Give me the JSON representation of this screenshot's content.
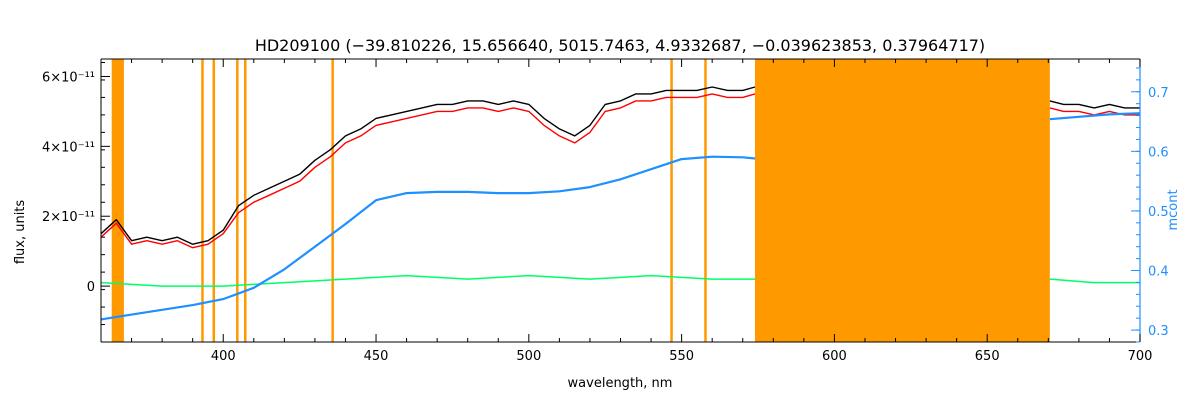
{
  "chart_data": {
    "type": "line",
    "title": "HD209100    (−39.810226, 15.656640, 5015.7463, 4.9332687, −0.039623853, 0.37964717)",
    "xlabel": "wavelength, nm",
    "ylabel": "flux, units",
    "y2label": "mcont",
    "xlim": [
      360,
      700
    ],
    "ylim": [
      -1.6e-11,
      6.5e-11
    ],
    "y2lim": [
      0.28,
      0.755
    ],
    "x_ticks": [
      {
        "value": 400,
        "label": "400"
      },
      {
        "value": 450,
        "label": "450"
      },
      {
        "value": 500,
        "label": "500"
      },
      {
        "value": 550,
        "label": "550"
      },
      {
        "value": 600,
        "label": "600"
      },
      {
        "value": 650,
        "label": "650"
      },
      {
        "value": 700,
        "label": "700"
      }
    ],
    "y_ticks": [
      {
        "value": 0,
        "label": "0"
      },
      {
        "value": 2e-11,
        "label": "2×10⁻¹¹"
      },
      {
        "value": 4e-11,
        "label": "4×10⁻¹¹"
      },
      {
        "value": 6e-11,
        "label": "6×10⁻¹¹"
      }
    ],
    "y2_ticks": [
      {
        "value": 0.3,
        "label": "0.3"
      },
      {
        "value": 0.4,
        "label": "0.4"
      },
      {
        "value": 0.5,
        "label": "0.5"
      },
      {
        "value": 0.6,
        "label": "0.6"
      },
      {
        "value": 0.7,
        "label": "0.7"
      }
    ],
    "masked_regions": [
      {
        "x0": 363.5,
        "x1": 367.5
      },
      {
        "x0": 392.8,
        "x1": 393.6
      },
      {
        "x0": 396.5,
        "x1": 397.3
      },
      {
        "x0": 404.2,
        "x1": 405.0
      },
      {
        "x0": 406.8,
        "x1": 407.6
      },
      {
        "x0": 435.4,
        "x1": 436.2
      },
      {
        "x0": 546.3,
        "x1": 547.1
      },
      {
        "x0": 557.4,
        "x1": 558.2
      },
      {
        "x0": 574.0,
        "x1": 670.5
      }
    ],
    "series": [
      {
        "role": "observed",
        "color": "#000000",
        "segments": [
          {
            "x": [
              360,
              365,
              370,
              375,
              380,
              385,
              390,
              395,
              400,
              405,
              410,
              415,
              420,
              425,
              430,
              435,
              440,
              445,
              450,
              455,
              460,
              465,
              470,
              475,
              480,
              485,
              490,
              495,
              500,
              505,
              510,
              515,
              520,
              525,
              530,
              535,
              540,
              545,
              550,
              555,
              560,
              565,
              570,
              574
            ],
            "y": [
              1.5e-11,
              1.9e-11,
              1.3e-11,
              1.4e-11,
              1.3e-11,
              1.4e-11,
              1.2e-11,
              1.3e-11,
              1.6e-11,
              2.3e-11,
              2.6e-11,
              2.8e-11,
              3e-11,
              3.2e-11,
              3.6e-11,
              3.9e-11,
              4.3e-11,
              4.5e-11,
              4.8e-11,
              4.9e-11,
              5e-11,
              5.1e-11,
              5.2e-11,
              5.2e-11,
              5.3e-11,
              5.3e-11,
              5.2e-11,
              5.3e-11,
              5.2e-11,
              4.8e-11,
              4.5e-11,
              4.3e-11,
              4.6e-11,
              5.2e-11,
              5.3e-11,
              5.5e-11,
              5.5e-11,
              5.6e-11,
              5.6e-11,
              5.6e-11,
              5.7e-11,
              5.6e-11,
              5.6e-11,
              5.7e-11
            ]
          },
          {
            "x": [
              670.5,
              675,
              680,
              685,
              690,
              695,
              700
            ],
            "y": [
              5.3e-11,
              5.2e-11,
              5.2e-11,
              5.1e-11,
              5.2e-11,
              5.1e-11,
              5.1e-11
            ]
          }
        ]
      },
      {
        "role": "model",
        "color": "#ff0000",
        "segments": [
          {
            "x": [
              360,
              365,
              370,
              375,
              380,
              385,
              390,
              395,
              400,
              405,
              410,
              415,
              420,
              425,
              430,
              435,
              440,
              445,
              450,
              455,
              460,
              465,
              470,
              475,
              480,
              485,
              490,
              495,
              500,
              505,
              510,
              515,
              520,
              525,
              530,
              535,
              540,
              545,
              550,
              555,
              560,
              565,
              570,
              574
            ],
            "y": [
              1.4e-11,
              1.8e-11,
              1.2e-11,
              1.3e-11,
              1.2e-11,
              1.3e-11,
              1.1e-11,
              1.2e-11,
              1.5e-11,
              2.1e-11,
              2.4e-11,
              2.6e-11,
              2.8e-11,
              3e-11,
              3.4e-11,
              3.7e-11,
              4.1e-11,
              4.3e-11,
              4.6e-11,
              4.7e-11,
              4.8e-11,
              4.9e-11,
              5e-11,
              5e-11,
              5.1e-11,
              5.1e-11,
              5e-11,
              5.1e-11,
              5e-11,
              4.6e-11,
              4.3e-11,
              4.1e-11,
              4.4e-11,
              5e-11,
              5.1e-11,
              5.3e-11,
              5.3e-11,
              5.4e-11,
              5.4e-11,
              5.4e-11,
              5.5e-11,
              5.4e-11,
              5.4e-11,
              5.5e-11
            ]
          },
          {
            "x": [
              670.5,
              675,
              680,
              685,
              690,
              695,
              700
            ],
            "y": [
              5.1e-11,
              5e-11,
              5e-11,
              4.9e-11,
              5e-11,
              4.9e-11,
              4.9e-11
            ]
          }
        ]
      },
      {
        "role": "residual",
        "color": "#00ff66",
        "segments": [
          {
            "x": [
              360,
              380,
              400,
              420,
              440,
              460,
              480,
              500,
              520,
              540,
              560,
              574
            ],
            "y": [
              1e-12,
              0.0,
              0.0,
              1e-12,
              2e-12,
              3e-12,
              2e-12,
              3e-12,
              2e-12,
              3e-12,
              2e-12,
              2e-12
            ]
          },
          {
            "x": [
              670.5,
              685,
              700
            ],
            "y": [
              2e-12,
              1e-12,
              1e-12
            ]
          }
        ]
      },
      {
        "role": "mcont",
        "axis": "y2",
        "color": "#1e90ff",
        "segments": [
          {
            "x": [
              360,
              370,
              380,
              390,
              400,
              410,
              420,
              430,
              440,
              450,
              460,
              470,
              480,
              490,
              500,
              510,
              520,
              530,
              540,
              550,
              560,
              570,
              574
            ],
            "y": [
              0.318,
              0.326,
              0.334,
              0.342,
              0.352,
              0.371,
              0.402,
              0.44,
              0.478,
              0.518,
              0.53,
              0.532,
              0.532,
              0.53,
              0.53,
              0.533,
              0.54,
              0.553,
              0.57,
              0.587,
              0.591,
              0.59,
              0.588
            ]
          },
          {
            "x": [
              670.5,
              680,
              690,
              700
            ],
            "y": [
              0.654,
              0.658,
              0.662,
              0.664
            ]
          }
        ]
      }
    ],
    "colors": {
      "mask": "#ff9900",
      "axis": "#000000",
      "right_axis": "#1e90ff",
      "yellow_highlight": "#ffff00"
    }
  }
}
